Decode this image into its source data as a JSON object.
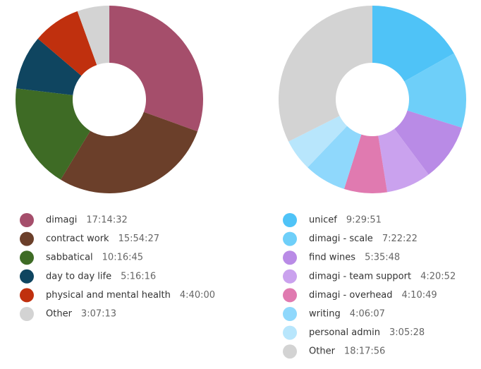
{
  "chart_data": [
    {
      "type": "pie",
      "categories": [
        "dimagi",
        "contract work",
        "sabbatical",
        "day to day life",
        "physical and mental health",
        "Other"
      ],
      "values": [
        62072,
        57267,
        37005,
        18976,
        16800,
        11233
      ],
      "value_labels": [
        "17:14:32",
        "15:54:27",
        "10:16:45",
        "5:16:16",
        "4:40:00",
        "3:07:13"
      ],
      "colors": [
        "#a54e6b",
        "#6b3f2a",
        "#3e6b25",
        "#0f4560",
        "#c0300e",
        "#d3d3d3"
      ]
    },
    {
      "type": "pie",
      "categories": [
        "unicef",
        "dimagi - scale",
        "find wines",
        "dimagi - team support",
        "dimagi - overhead",
        "writing",
        "personal admin",
        "Other"
      ],
      "values": [
        34191,
        26542,
        20148,
        15652,
        15049,
        14767,
        11128,
        65876
      ],
      "value_labels": [
        "9:29:51",
        "7:22:22",
        "5:35:48",
        "4:20:52",
        "4:10:49",
        "4:06:07",
        "3:05:28",
        "18:17:56"
      ],
      "colors": [
        "#4fc3f7",
        "#6ecff9",
        "#b98be6",
        "#caa2ee",
        "#e07ab0",
        "#8fd8fc",
        "#b8e6fc",
        "#d3d3d3"
      ]
    }
  ]
}
